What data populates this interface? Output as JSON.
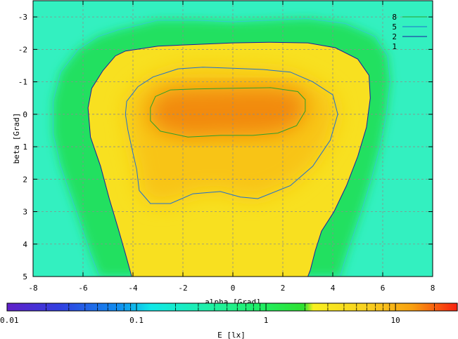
{
  "chart_data": {
    "type": "heatmap",
    "title": "",
    "xlabel": "alpha [Grad]",
    "ylabel": "beta [Grad]",
    "xlim": [
      -8,
      8
    ],
    "ylim": [
      -3.5,
      5
    ],
    "y_inverted": true,
    "grid": true,
    "x_ticks": [
      -8,
      -6,
      -4,
      -2,
      0,
      2,
      4,
      6,
      8
    ],
    "x_tick_labels": [
      "-8",
      "-6",
      "-4",
      "-2",
      "0",
      "2",
      "4",
      "6",
      "8"
    ],
    "y_ticks": [
      -3,
      -2,
      -1,
      0,
      1,
      2,
      3,
      4,
      5
    ],
    "y_tick_labels": [
      "-3",
      "-2",
      "-1",
      "0",
      "1",
      "2",
      "3",
      "4",
      "5"
    ],
    "legend_position": "top-right",
    "contours": [
      {
        "name": "8",
        "level": 8,
        "color": "#2ca02c",
        "points": [
          [
            -3.1,
            -0.55
          ],
          [
            -2.5,
            -0.75
          ],
          [
            -1.5,
            -0.78
          ],
          [
            0,
            -0.8
          ],
          [
            1.5,
            -0.82
          ],
          [
            2.6,
            -0.7
          ],
          [
            2.9,
            -0.45
          ],
          [
            2.9,
            -0.1
          ],
          [
            2.55,
            0.35
          ],
          [
            1.8,
            0.58
          ],
          [
            0.8,
            0.65
          ],
          [
            -0.5,
            0.65
          ],
          [
            -1.8,
            0.7
          ],
          [
            -2.9,
            0.52
          ],
          [
            -3.3,
            0.2
          ],
          [
            -3.3,
            -0.2
          ],
          [
            -3.1,
            -0.55
          ]
        ]
      },
      {
        "name": "5",
        "level": 5,
        "color": "#1e6fd0",
        "points": [
          [
            -3.8,
            -0.85
          ],
          [
            -3.2,
            -1.15
          ],
          [
            -2.2,
            -1.4
          ],
          [
            -1.2,
            -1.45
          ],
          [
            0,
            -1.42
          ],
          [
            1.2,
            -1.38
          ],
          [
            2.3,
            -1.3
          ],
          [
            3.2,
            -1.0
          ],
          [
            4.0,
            -0.6
          ],
          [
            4.2,
            0
          ],
          [
            3.9,
            0.8
          ],
          [
            3.2,
            1.6
          ],
          [
            2.3,
            2.2
          ],
          [
            1.0,
            2.6
          ],
          [
            0.3,
            2.55
          ],
          [
            -0.5,
            2.38
          ],
          [
            -1.6,
            2.45
          ],
          [
            -2.5,
            2.75
          ],
          [
            -3.3,
            2.75
          ],
          [
            -3.75,
            2.35
          ],
          [
            -3.85,
            1.7
          ],
          [
            -4.0,
            1.2
          ],
          [
            -4.2,
            0.5
          ],
          [
            -4.3,
            0
          ],
          [
            -4.25,
            -0.4
          ],
          [
            -3.8,
            -0.85
          ]
        ]
      },
      {
        "name": "2",
        "level": 2,
        "color": "#1a1aa0",
        "points": [
          [
            -4.3,
            -1.95
          ],
          [
            -3.0,
            -2.1
          ],
          [
            -1.5,
            -2.15
          ],
          [
            0,
            -2.2
          ],
          [
            1.5,
            -2.22
          ],
          [
            3.0,
            -2.2
          ],
          [
            4.1,
            -2.05
          ],
          [
            5.0,
            -1.7
          ],
          [
            5.45,
            -1.2
          ],
          [
            5.5,
            -0.5
          ],
          [
            5.35,
            0.4
          ],
          [
            5.0,
            1.3
          ],
          [
            4.55,
            2.2
          ],
          [
            4.05,
            3.0
          ],
          [
            3.55,
            3.6
          ],
          [
            3.3,
            4.2
          ],
          [
            3.1,
            4.8
          ],
          [
            3.0,
            5.0
          ],
          [
            -4.05,
            5.0
          ],
          [
            -4.3,
            4.3
          ],
          [
            -4.6,
            3.5
          ],
          [
            -4.95,
            2.6
          ],
          [
            -5.3,
            1.6
          ],
          [
            -5.7,
            0.7
          ],
          [
            -5.8,
            -0.2
          ],
          [
            -5.65,
            -0.8
          ],
          [
            -5.2,
            -1.35
          ],
          [
            -4.7,
            -1.8
          ],
          [
            -4.3,
            -1.95
          ]
        ]
      },
      {
        "name": "1",
        "level": 1,
        "color": "#33cccc",
        "points": [
          [
            -4.6,
            -2.6
          ],
          [
            -3.0,
            -2.9
          ],
          [
            -1.5,
            -2.9
          ],
          [
            0,
            -2.85
          ],
          [
            1.5,
            -2.9
          ],
          [
            3.0,
            -2.95
          ],
          [
            4.5,
            -2.8
          ],
          [
            5.7,
            -2.4
          ],
          [
            6.2,
            -1.8
          ],
          [
            6.3,
            -1.0
          ],
          [
            6.15,
            0
          ],
          [
            5.9,
            1.0
          ],
          [
            5.55,
            2.0
          ],
          [
            5.15,
            3.0
          ],
          [
            4.75,
            3.9
          ],
          [
            4.45,
            4.6
          ],
          [
            4.3,
            5.0
          ],
          [
            -5.35,
            5.0
          ],
          [
            -5.7,
            4.3
          ],
          [
            -6.05,
            3.5
          ],
          [
            -6.45,
            2.6
          ],
          [
            -6.9,
            1.6
          ],
          [
            -7.2,
            0.6
          ],
          [
            -7.2,
            -0.4
          ],
          [
            -6.9,
            -1.3
          ],
          [
            -6.2,
            -2.0
          ],
          [
            -5.4,
            -2.4
          ],
          [
            -4.6,
            -2.6
          ]
        ]
      }
    ],
    "colorbar": {
      "label": "E [lx]",
      "scale": "log",
      "range": [
        0.01,
        30
      ],
      "tick_labels": [
        "0.01",
        "0.1",
        "1",
        "10"
      ],
      "tick_values": [
        0.01,
        0.1,
        1,
        10
      ]
    }
  },
  "colors": {
    "background_cyan": "#33f0c0",
    "mid_green": "#22e060",
    "yellow": "#f8e020",
    "orange_peak": "#f28a08"
  }
}
